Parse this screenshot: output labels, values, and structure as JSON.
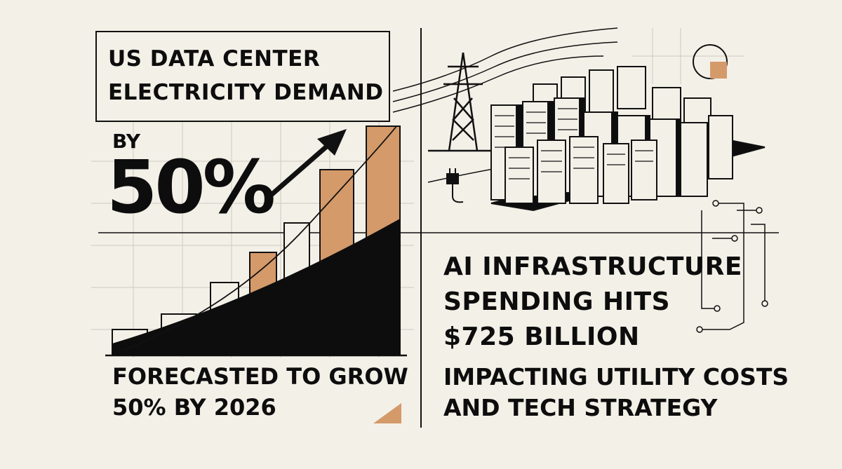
{
  "headline": {
    "title_line1": "US DATA CENTER",
    "title_line2": "ELECTRICITY DEMAND",
    "by": "BY",
    "big_number": "50%",
    "forecast_line1": "FORECASTED TO GROW",
    "forecast_line2": "50% BY 2026"
  },
  "right_panel": {
    "title_line1": "AI INFRASTRUCTURE",
    "title_line2": "SPENDING HITS",
    "title_line3": "$725 BILLION",
    "subtitle_line1": "IMPACTING UTILITY COSTS",
    "subtitle_line2": "AND TECH STRATEGY"
  },
  "colors": {
    "background": "#f3f0e8",
    "ink": "#0d0d0d",
    "accent": "#d49a6a"
  }
}
